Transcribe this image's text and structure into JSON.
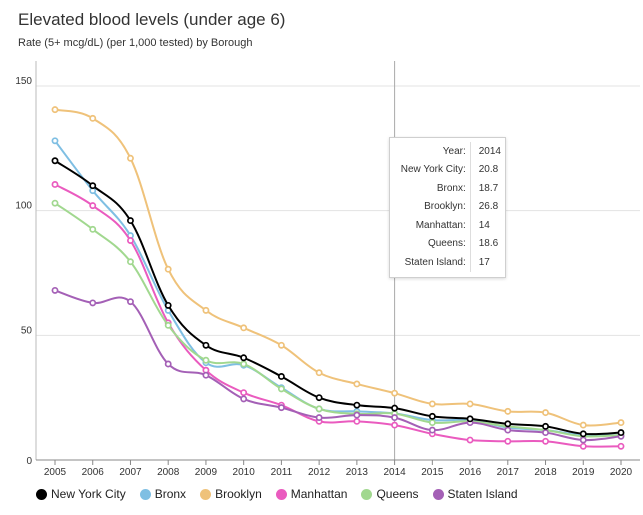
{
  "title": "Elevated blood levels (under age 6)",
  "subtitle": "Rate (5+ mcg/dL) (per 1,000 tested) by Borough",
  "colors": {
    "New York City": "#000000",
    "Bronx": "#7fbfe3",
    "Brooklyn": "#efc27a",
    "Manhattan": "#ea5bbf",
    "Queens": "#a1d88f",
    "Staten Island": "#a460b6"
  },
  "tooltip": {
    "rows": [
      {
        "key": "Year:",
        "value": "2014"
      },
      {
        "key": "New York City:",
        "value": "20.8"
      },
      {
        "key": "Bronx:",
        "value": "18.7"
      },
      {
        "key": "Brooklyn:",
        "value": "26.8"
      },
      {
        "key": "Manhattan:",
        "value": "14"
      },
      {
        "key": "Queens:",
        "value": "18.6"
      },
      {
        "key": "Staten Island:",
        "value": "17"
      }
    ]
  },
  "chart_data": {
    "type": "line",
    "x": [
      2005,
      2006,
      2007,
      2008,
      2009,
      2010,
      2011,
      2012,
      2013,
      2014,
      2015,
      2016,
      2017,
      2018,
      2019,
      2020
    ],
    "xlabel": "",
    "ylabel": "",
    "ylim": [
      0,
      160
    ],
    "yticks": [
      0,
      50,
      100,
      150
    ],
    "grid": true,
    "legend": "bottom",
    "highlight_x": 2014,
    "series": [
      {
        "name": "New York City",
        "values": [
          120,
          110,
          96,
          62,
          46,
          41,
          33.5,
          25,
          22,
          20.8,
          17.5,
          16.5,
          14.5,
          13.5,
          10.5,
          11
        ]
      },
      {
        "name": "Bronx",
        "values": [
          128,
          108,
          90,
          60,
          39,
          38,
          29,
          20.5,
          19.5,
          18.7,
          16,
          16,
          13,
          12,
          10,
          10
        ]
      },
      {
        "name": "Brooklyn",
        "values": [
          140.5,
          137,
          121,
          76.5,
          60,
          53,
          46,
          35,
          30.5,
          26.8,
          22.5,
          22.5,
          19.5,
          19,
          14,
          15
        ]
      },
      {
        "name": "Manhattan",
        "values": [
          110.5,
          102,
          88,
          55,
          36,
          27,
          22,
          15.5,
          15.5,
          14,
          10.5,
          8,
          7.5,
          7.5,
          5.5,
          5.5
        ]
      },
      {
        "name": "Queens",
        "values": [
          103,
          92.5,
          79.5,
          54,
          40,
          38.5,
          28.5,
          20.5,
          18.5,
          18.6,
          15,
          15.5,
          13.5,
          12,
          9.5,
          10
        ]
      },
      {
        "name": "Staten Island",
        "values": [
          68,
          63,
          63.5,
          38.5,
          34,
          24.5,
          21,
          17,
          18,
          17,
          12,
          15,
          12,
          11,
          8,
          9.5
        ]
      }
    ]
  }
}
